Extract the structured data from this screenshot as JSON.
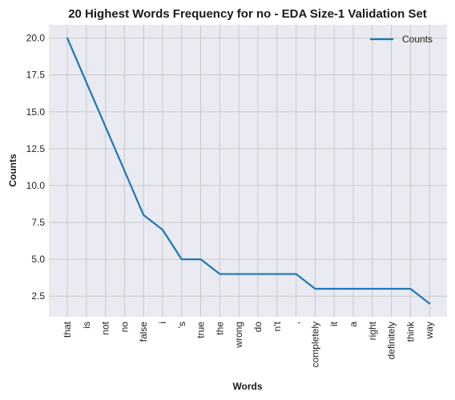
{
  "chart_data": {
    "type": "line",
    "title": "20 Highest Words Frequency for no - EDA Size-1 Validation Set",
    "xlabel": "Words",
    "ylabel": "Counts",
    "categories": [
      "that",
      "is",
      "not",
      "no",
      "false",
      "i",
      "'s",
      "true",
      "the",
      "wrong",
      "do",
      "n't",
      ",",
      "completely",
      "it",
      "a",
      "right",
      "definitely",
      "think",
      "way"
    ],
    "series": [
      {
        "name": "Counts",
        "values": [
          20,
          17,
          14,
          11,
          8,
          7,
          5,
          5,
          4,
          4,
          4,
          4,
          4,
          3,
          3,
          3,
          3,
          3,
          3,
          2
        ]
      }
    ],
    "ylim": [
      1.1,
      20.9
    ],
    "yticks": [
      2.5,
      5.0,
      7.5,
      10.0,
      12.5,
      15.0,
      17.5,
      20.0
    ],
    "ytick_labels": [
      "2.5",
      "5.0",
      "7.5",
      "10.0",
      "12.5",
      "15.0",
      "17.5",
      "20.0"
    ],
    "grid": true,
    "legend_position": "top-right",
    "colors": {
      "line": "#1f77b4",
      "plot_background": "#eaeaf2",
      "grid": "#c9c9c9"
    }
  }
}
